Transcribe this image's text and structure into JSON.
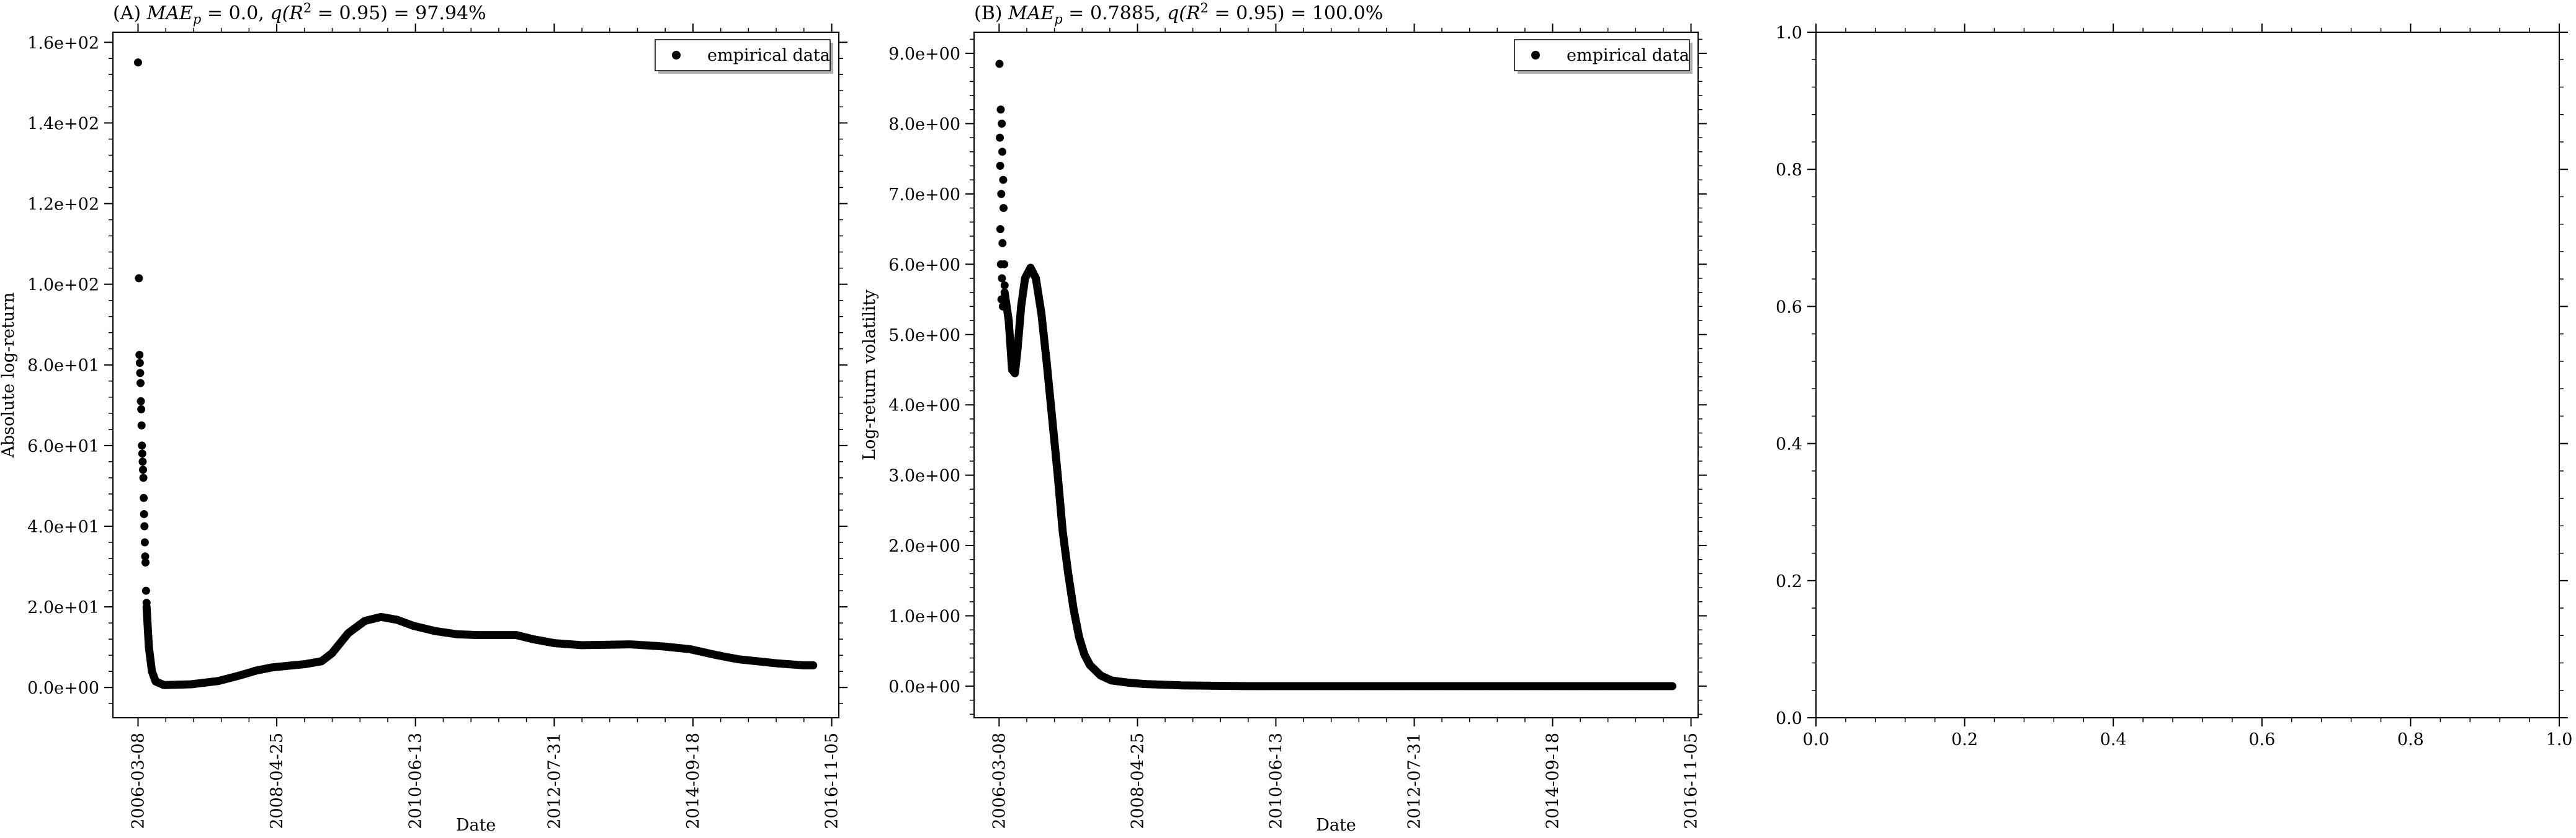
{
  "chart_data": [
    {
      "type": "scatter",
      "title": "(A) MAE_p = 0.0, q(R^2 = 0.95) = 97.94%",
      "title_parts": {
        "prefix": "(A) ",
        "mae": "MAE",
        "mae_sub": "p",
        "mae_value": " = 0.0, ",
        "q": "q",
        "r2": "(R",
        "r2_sup": "2",
        "r2_rest": " = 0.95) = 97.94%"
      },
      "xlabel": "Date",
      "ylabel": "Absolute log-return",
      "xlim": [
        "2005-10-18",
        "2016-12-15"
      ],
      "ylim": [
        -7.5,
        162.5
      ],
      "xticks": [
        "2006-03-08",
        "2008-04-25",
        "2010-06-13",
        "2012-07-31",
        "2014-09-18",
        "2016-11-05"
      ],
      "yticks": [
        0,
        20,
        40,
        60,
        80,
        100,
        120,
        140,
        160
      ],
      "ytick_labels": [
        "0.0e+00",
        "2.0e+01",
        "4.0e+01",
        "6.0e+01",
        "8.0e+01",
        "1.0e+02",
        "1.2e+02",
        "1.4e+02",
        "1.6e+02"
      ],
      "legend": {
        "position": "top-right",
        "entries": [
          {
            "label": "empirical data",
            "marker": "dot"
          }
        ]
      },
      "grid": false,
      "series": [
        {
          "color": "#000000",
          "points": [
            [
              "2006-03-08",
              155
            ],
            [
              "2006-03-13",
              101.5
            ],
            [
              "2006-03-16",
              82.5
            ],
            [
              "2006-03-18",
              80.5
            ],
            [
              "2006-03-20",
              78
            ],
            [
              "2006-03-22",
              75.5
            ],
            [
              "2006-03-24",
              71
            ],
            [
              "2006-03-26",
              69
            ],
            [
              "2006-03-28",
              65
            ],
            [
              "2006-03-30",
              60
            ],
            [
              "2006-04-01",
              58
            ],
            [
              "2006-04-03",
              56
            ],
            [
              "2006-04-05",
              54
            ],
            [
              "2006-04-07",
              52
            ],
            [
              "2006-04-09",
              47
            ],
            [
              "2006-04-11",
              43
            ],
            [
              "2006-04-13",
              40
            ],
            [
              "2006-04-15",
              36
            ],
            [
              "2006-04-17",
              32.5
            ],
            [
              "2006-04-19",
              31
            ],
            [
              "2006-04-22",
              24
            ],
            [
              "2006-04-25",
              21
            ]
          ],
          "curve": [
            [
              "2006-04-25",
              20
            ],
            [
              "2006-05-08",
              10
            ],
            [
              "2006-05-25",
              4
            ],
            [
              "2006-06-15",
              1.5
            ],
            [
              "2006-08-01",
              0.6
            ],
            [
              "2007-01-01",
              0.8
            ],
            [
              "2007-06-01",
              1.6
            ],
            [
              "2007-10-01",
              3
            ],
            [
              "2008-01-01",
              4.2
            ],
            [
              "2008-04-01",
              5
            ],
            [
              "2008-10-01",
              5.8
            ],
            [
              "2009-01-01",
              6.5
            ],
            [
              "2009-03-01",
              8.5
            ],
            [
              "2009-06-01",
              13.5
            ],
            [
              "2009-09-01",
              16.5
            ],
            [
              "2009-12-01",
              17.5
            ],
            [
              "2010-03-01",
              16.8
            ],
            [
              "2010-06-01",
              15.3
            ],
            [
              "2010-10-01",
              14
            ],
            [
              "2011-02-01",
              13.2
            ],
            [
              "2011-06-01",
              13
            ],
            [
              "2012-01-01",
              13
            ],
            [
              "2012-04-01",
              12
            ],
            [
              "2012-08-01",
              11
            ],
            [
              "2013-01-01",
              10.5
            ],
            [
              "2013-06-01",
              10.6
            ],
            [
              "2013-10-01",
              10.7
            ],
            [
              "2014-04-01",
              10.2
            ],
            [
              "2014-09-01",
              9.5
            ],
            [
              "2015-02-01",
              8
            ],
            [
              "2015-06-01",
              7
            ],
            [
              "2016-01-01",
              6
            ],
            [
              "2016-06-01",
              5.5
            ],
            [
              "2016-08-01",
              5.5
            ]
          ]
        }
      ]
    },
    {
      "type": "scatter",
      "title": "(B) MAE_p = 0.7885, q(R^2 = 0.95) = 100.0%",
      "title_parts": {
        "prefix": "(B) ",
        "mae": "MAE",
        "mae_sub": "p",
        "mae_value": " = 0.7885, ",
        "q": "q",
        "r2": "(R",
        "r2_sup": "2",
        "r2_rest": " = 0.95) = 100.0%"
      },
      "xlabel": "Date",
      "ylabel": "Log-return volatility",
      "xlim": [
        "2005-10-18",
        "2016-12-15"
      ],
      "ylim": [
        -0.45,
        9.3
      ],
      "xticks": [
        "2006-03-08",
        "2008-04-25",
        "2010-06-13",
        "2012-07-31",
        "2014-09-18",
        "2016-11-05"
      ],
      "yticks": [
        0,
        1,
        2,
        3,
        4,
        5,
        6,
        7,
        8,
        9
      ],
      "ytick_labels": [
        "0.0e+00",
        "1.0e+00",
        "2.0e+00",
        "3.0e+00",
        "4.0e+00",
        "5.0e+00",
        "6.0e+00",
        "7.0e+00",
        "8.0e+00",
        "9.0e+00"
      ],
      "legend": {
        "position": "top-right",
        "entries": [
          {
            "label": "empirical data",
            "marker": "dot"
          }
        ]
      },
      "grid": false,
      "series": [
        {
          "color": "#000000",
          "points": [
            [
              "2006-03-10",
              8.85
            ],
            [
              "2006-03-12",
              7.8
            ],
            [
              "2006-03-14",
              7.4
            ],
            [
              "2006-03-15",
              6.5
            ],
            [
              "2006-03-17",
              8.2
            ],
            [
              "2006-03-18",
              6.0
            ],
            [
              "2006-03-20",
              7.0
            ],
            [
              "2006-03-21",
              5.5
            ],
            [
              "2006-03-23",
              8.0
            ],
            [
              "2006-03-24",
              5.8
            ],
            [
              "2006-03-26",
              7.6
            ],
            [
              "2006-03-27",
              6.3
            ],
            [
              "2006-03-29",
              5.4
            ],
            [
              "2006-03-31",
              7.2
            ],
            [
              "2006-04-02",
              6.8
            ],
            [
              "2006-04-04",
              5.5
            ],
            [
              "2006-04-06",
              6.0
            ],
            [
              "2006-04-08",
              5.7
            ]
          ],
          "curve": [
            [
              "2006-04-08",
              5.6
            ],
            [
              "2006-05-01",
              5.2
            ],
            [
              "2006-05-20",
              4.5
            ],
            [
              "2006-06-05",
              4.45
            ],
            [
              "2006-06-20",
              4.8
            ],
            [
              "2006-07-10",
              5.4
            ],
            [
              "2006-08-01",
              5.8
            ],
            [
              "2006-09-01",
              5.95
            ],
            [
              "2006-10-01",
              5.8
            ],
            [
              "2006-11-01",
              5.3
            ],
            [
              "2006-12-01",
              4.6
            ],
            [
              "2007-01-01",
              3.8
            ],
            [
              "2007-02-01",
              3.0
            ],
            [
              "2007-03-01",
              2.2
            ],
            [
              "2007-04-01",
              1.6
            ],
            [
              "2007-05-01",
              1.1
            ],
            [
              "2007-06-01",
              0.7
            ],
            [
              "2007-07-01",
              0.45
            ],
            [
              "2007-08-01",
              0.3
            ],
            [
              "2007-10-01",
              0.15
            ],
            [
              "2007-12-01",
              0.08
            ],
            [
              "2008-03-01",
              0.05
            ],
            [
              "2008-06-01",
              0.03
            ],
            [
              "2009-01-01",
              0.01
            ],
            [
              "2010-01-01",
              0
            ],
            [
              "2013-01-01",
              0
            ],
            [
              "2016-08-01",
              0
            ]
          ]
        }
      ]
    },
    {
      "type": "scatter",
      "title": "",
      "xlim": [
        0,
        1
      ],
      "ylim": [
        0,
        1
      ],
      "xticks": [
        0,
        0.2,
        0.4,
        0.6,
        0.8,
        1
      ],
      "xtick_labels": [
        "0.0",
        "0.2",
        "0.4",
        "0.6",
        "0.8",
        "1.0"
      ],
      "yticks": [
        0,
        0.2,
        0.4,
        0.6,
        0.8,
        1
      ],
      "ytick_labels": [
        "0.0",
        "0.2",
        "0.4",
        "0.6",
        "0.8",
        "1.0"
      ],
      "grid": false,
      "series": []
    }
  ]
}
